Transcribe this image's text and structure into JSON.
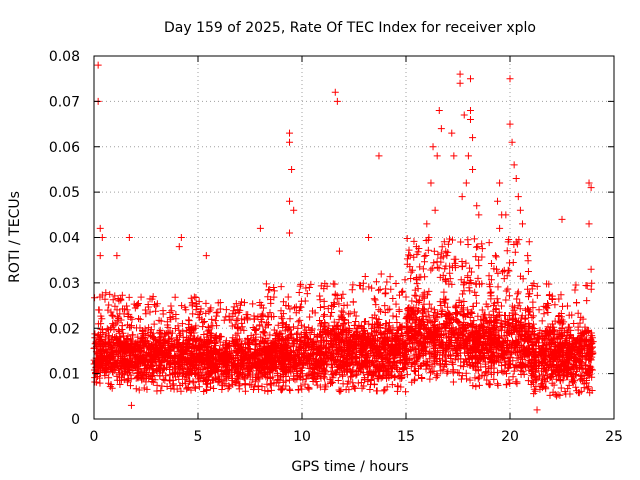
{
  "chart_data": {
    "type": "scatter",
    "title": "Day 159 of 2025, Rate Of TEC Index for receiver xplo",
    "xlabel": "GPS time / hours",
    "ylabel": "ROTI / TECUs",
    "xlim": [
      0,
      25
    ],
    "ylim": [
      0,
      0.08
    ],
    "x_ticks": [
      "0",
      "5",
      "10",
      "15",
      "20",
      "25"
    ],
    "x_tick_values": [
      0,
      5,
      10,
      15,
      20,
      25
    ],
    "y_ticks": [
      "0",
      "0.01",
      "0.02",
      "0.03",
      "0.04",
      "0.05",
      "0.06",
      "0.07",
      "0.08"
    ],
    "y_tick_values": [
      0,
      0.01,
      0.02,
      0.03,
      0.04,
      0.05,
      0.06,
      0.07,
      0.08
    ],
    "grid": true,
    "marker": "plus",
    "color": "#ff0000",
    "series": [
      {
        "name": "ROTI",
        "outliers": [
          [
            0.2,
            0.078
          ],
          [
            0.2,
            0.07
          ],
          [
            0.3,
            0.042
          ],
          [
            0.4,
            0.04
          ],
          [
            0.3,
            0.036
          ],
          [
            1.1,
            0.036
          ],
          [
            1.7,
            0.04
          ],
          [
            1.8,
            0.003
          ],
          [
            4.2,
            0.04
          ],
          [
            4.1,
            0.038
          ],
          [
            5.4,
            0.036
          ],
          [
            8.0,
            0.042
          ],
          [
            9.4,
            0.063
          ],
          [
            9.4,
            0.061
          ],
          [
            9.5,
            0.055
          ],
          [
            9.4,
            0.048
          ],
          [
            9.6,
            0.046
          ],
          [
            9.4,
            0.041
          ],
          [
            11.6,
            0.072
          ],
          [
            11.7,
            0.07
          ],
          [
            11.8,
            0.037
          ],
          [
            13.2,
            0.04
          ],
          [
            13.7,
            0.058
          ],
          [
            16.3,
            0.06
          ],
          [
            16.5,
            0.058
          ],
          [
            16.6,
            0.068
          ],
          [
            16.7,
            0.064
          ],
          [
            16.2,
            0.052
          ],
          [
            16.4,
            0.046
          ],
          [
            17.2,
            0.063
          ],
          [
            17.3,
            0.058
          ],
          [
            17.6,
            0.076
          ],
          [
            17.6,
            0.074
          ],
          [
            17.8,
            0.067
          ],
          [
            18.1,
            0.075
          ],
          [
            18.1,
            0.068
          ],
          [
            18.1,
            0.066
          ],
          [
            18.2,
            0.062
          ],
          [
            18.0,
            0.058
          ],
          [
            18.2,
            0.055
          ],
          [
            17.9,
            0.052
          ],
          [
            17.7,
            0.049
          ],
          [
            18.4,
            0.047
          ],
          [
            18.5,
            0.045
          ],
          [
            19.5,
            0.052
          ],
          [
            19.8,
            0.045
          ],
          [
            19.5,
            0.042
          ],
          [
            20.0,
            0.075
          ],
          [
            20.0,
            0.065
          ],
          [
            20.1,
            0.061
          ],
          [
            20.2,
            0.056
          ],
          [
            20.3,
            0.053
          ],
          [
            20.4,
            0.049
          ],
          [
            20.5,
            0.046
          ],
          [
            20.6,
            0.043
          ],
          [
            20.3,
            0.039
          ],
          [
            22.5,
            0.044
          ],
          [
            23.8,
            0.052
          ],
          [
            23.9,
            0.051
          ],
          [
            23.8,
            0.043
          ],
          [
            23.9,
            0.033
          ],
          [
            21.3,
            0.002
          ],
          [
            19.4,
            0.048
          ],
          [
            19.6,
            0.045
          ],
          [
            19.3,
            0.036
          ],
          [
            15.2,
            0.036
          ],
          [
            15.5,
            0.038
          ],
          [
            16.0,
            0.043
          ],
          [
            16.1,
            0.04
          ],
          [
            20.4,
            0.028
          ]
        ],
        "density_bands": [
          {
            "x_start": 0,
            "x_end": 2,
            "y_low": 0.007,
            "y_high": 0.028,
            "center": 0.014
          },
          {
            "x_start": 2,
            "x_end": 5,
            "y_low": 0.006,
            "y_high": 0.027,
            "center": 0.014
          },
          {
            "x_start": 5,
            "x_end": 8,
            "y_low": 0.006,
            "y_high": 0.026,
            "center": 0.013
          },
          {
            "x_start": 8,
            "x_end": 11,
            "y_low": 0.006,
            "y_high": 0.03,
            "center": 0.014
          },
          {
            "x_start": 11,
            "x_end": 13,
            "y_low": 0.006,
            "y_high": 0.03,
            "center": 0.015
          },
          {
            "x_start": 13,
            "x_end": 15,
            "y_low": 0.006,
            "y_high": 0.032,
            "center": 0.015
          },
          {
            "x_start": 15,
            "x_end": 18,
            "y_low": 0.008,
            "y_high": 0.04,
            "center": 0.018
          },
          {
            "x_start": 18,
            "x_end": 21,
            "y_low": 0.007,
            "y_high": 0.04,
            "center": 0.017
          },
          {
            "x_start": 21,
            "x_end": 24,
            "y_low": 0.005,
            "y_high": 0.03,
            "center": 0.014
          }
        ]
      }
    ]
  }
}
